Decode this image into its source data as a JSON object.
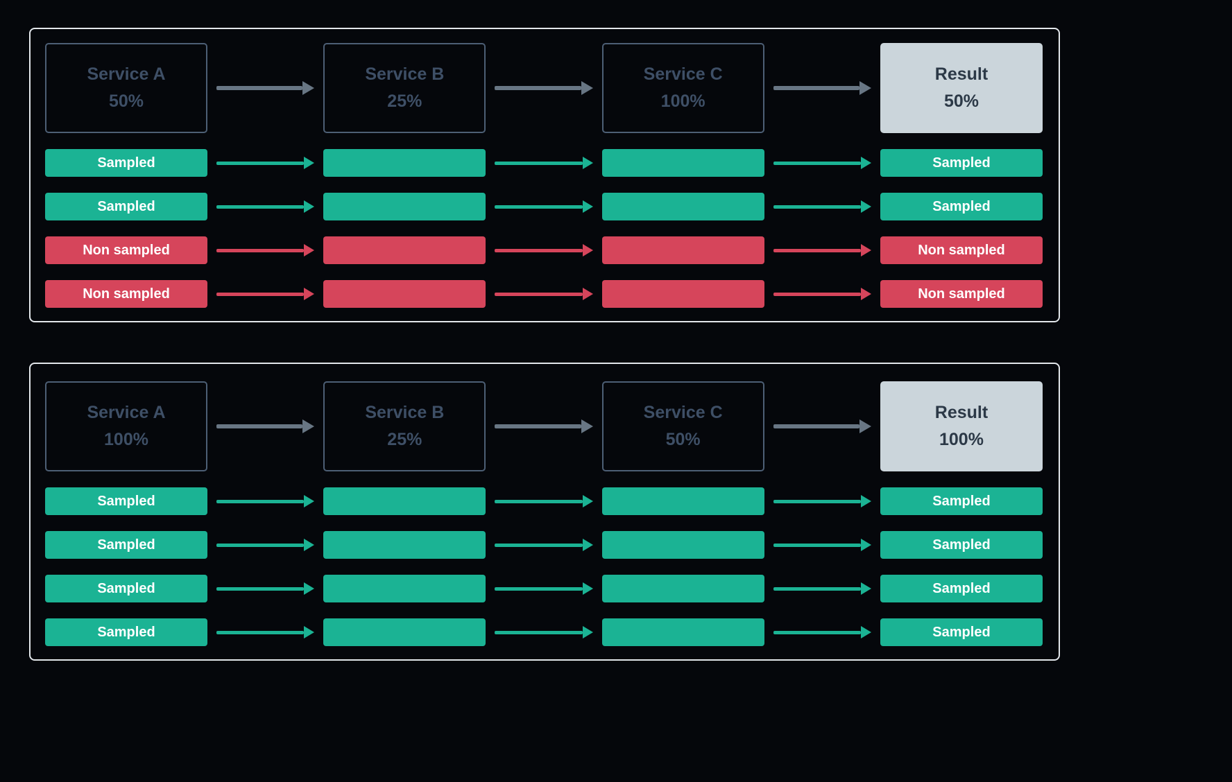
{
  "colors": {
    "background": "#05070B",
    "panel_border": "#E3E7EB",
    "service_box_border": "#4D5F75",
    "service_text": "#3E4F66",
    "result_bg": "#CBD5DB",
    "result_text": "#2C3947",
    "sampled": "#1BB394",
    "non_sampled": "#D6455B",
    "header_arrow": "#687684",
    "pill_text": "#FFFFFF"
  },
  "panels": [
    {
      "name": "sampling-scenario-50-percent-result",
      "services": [
        {
          "title": "Service A",
          "rate": "50%",
          "type": "service"
        },
        {
          "title": "Service B",
          "rate": "25%",
          "type": "service"
        },
        {
          "title": "Service C",
          "rate": "100%",
          "type": "service"
        },
        {
          "title": "Result",
          "rate": "50%",
          "type": "result"
        }
      ],
      "rows": [
        {
          "kind": "sampled",
          "label": "Sampled",
          "end_label": "Sampled"
        },
        {
          "kind": "sampled",
          "label": "Sampled",
          "end_label": "Sampled"
        },
        {
          "kind": "non_sampled",
          "label": "Non sampled",
          "end_label": "Non sampled"
        },
        {
          "kind": "non_sampled",
          "label": "Non sampled",
          "end_label": "Non sampled"
        }
      ]
    },
    {
      "name": "sampling-scenario-100-percent-result",
      "services": [
        {
          "title": "Service A",
          "rate": "100%",
          "type": "service"
        },
        {
          "title": "Service B",
          "rate": "25%",
          "type": "service"
        },
        {
          "title": "Service C",
          "rate": "50%",
          "type": "service"
        },
        {
          "title": "Result",
          "rate": "100%",
          "type": "result"
        }
      ],
      "rows": [
        {
          "kind": "sampled",
          "label": "Sampled",
          "end_label": "Sampled"
        },
        {
          "kind": "sampled",
          "label": "Sampled",
          "end_label": "Sampled"
        },
        {
          "kind": "sampled",
          "label": "Sampled",
          "end_label": "Sampled"
        },
        {
          "kind": "sampled",
          "label": "Sampled",
          "end_label": "Sampled"
        }
      ]
    }
  ]
}
